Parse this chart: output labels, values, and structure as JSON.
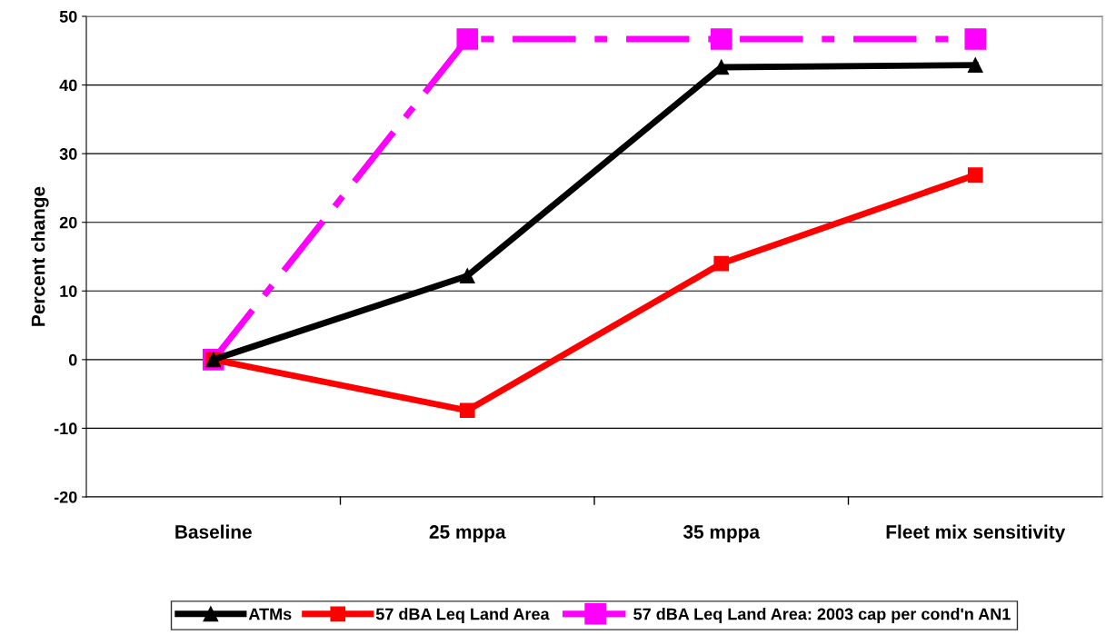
{
  "chart_data": {
    "type": "line",
    "ylabel": "Percent change",
    "categories": [
      "Baseline",
      "25 mppa",
      "35 mppa",
      "Fleet mix sensitivity"
    ],
    "series": [
      {
        "name": "ATMs",
        "color": "#000000",
        "values": [
          0,
          12.2,
          42.6,
          42.9
        ],
        "marker": "triangle",
        "line_style": "solid"
      },
      {
        "name": "57 dBA Leq Land Area",
        "color": "#ff0000",
        "values": [
          0,
          -7.4,
          14.0,
          26.9
        ],
        "marker": "square",
        "line_style": "solid"
      },
      {
        "name": "57 dBA Leq Land Area: 2003 cap per cond'n AN1",
        "color": "#ff00ff",
        "values": [
          0,
          46.7,
          46.7,
          46.7
        ],
        "marker": "square",
        "line_style": "dashed"
      }
    ],
    "ylim": [
      -20,
      50
    ],
    "yticks": [
      -20,
      -10,
      0,
      10,
      20,
      30,
      40,
      50
    ],
    "grid": "y",
    "legend": "bottom"
  }
}
